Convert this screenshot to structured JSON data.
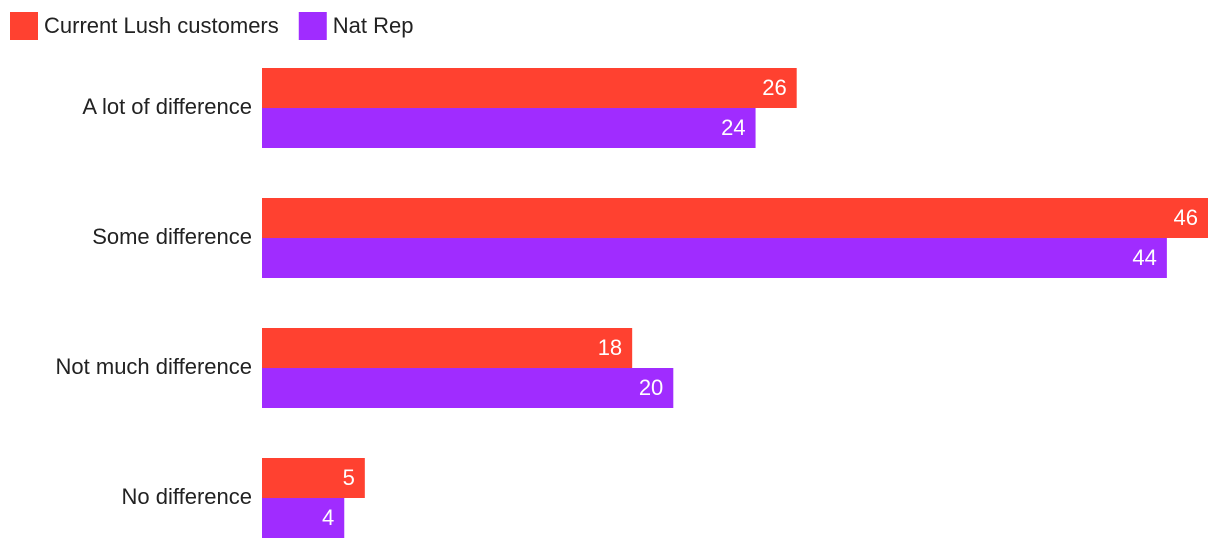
{
  "chart_data": {
    "type": "bar",
    "orientation": "horizontal",
    "categories": [
      "A lot of difference",
      "Some difference",
      "Not much difference",
      "No difference"
    ],
    "series": [
      {
        "name": "Current Lush customers",
        "color": "#ff4130",
        "values": [
          26,
          46,
          18,
          5
        ]
      },
      {
        "name": "Nat Rep",
        "color": "#a02cff",
        "values": [
          24,
          44,
          20,
          4
        ]
      }
    ],
    "legend": "top-left"
  }
}
